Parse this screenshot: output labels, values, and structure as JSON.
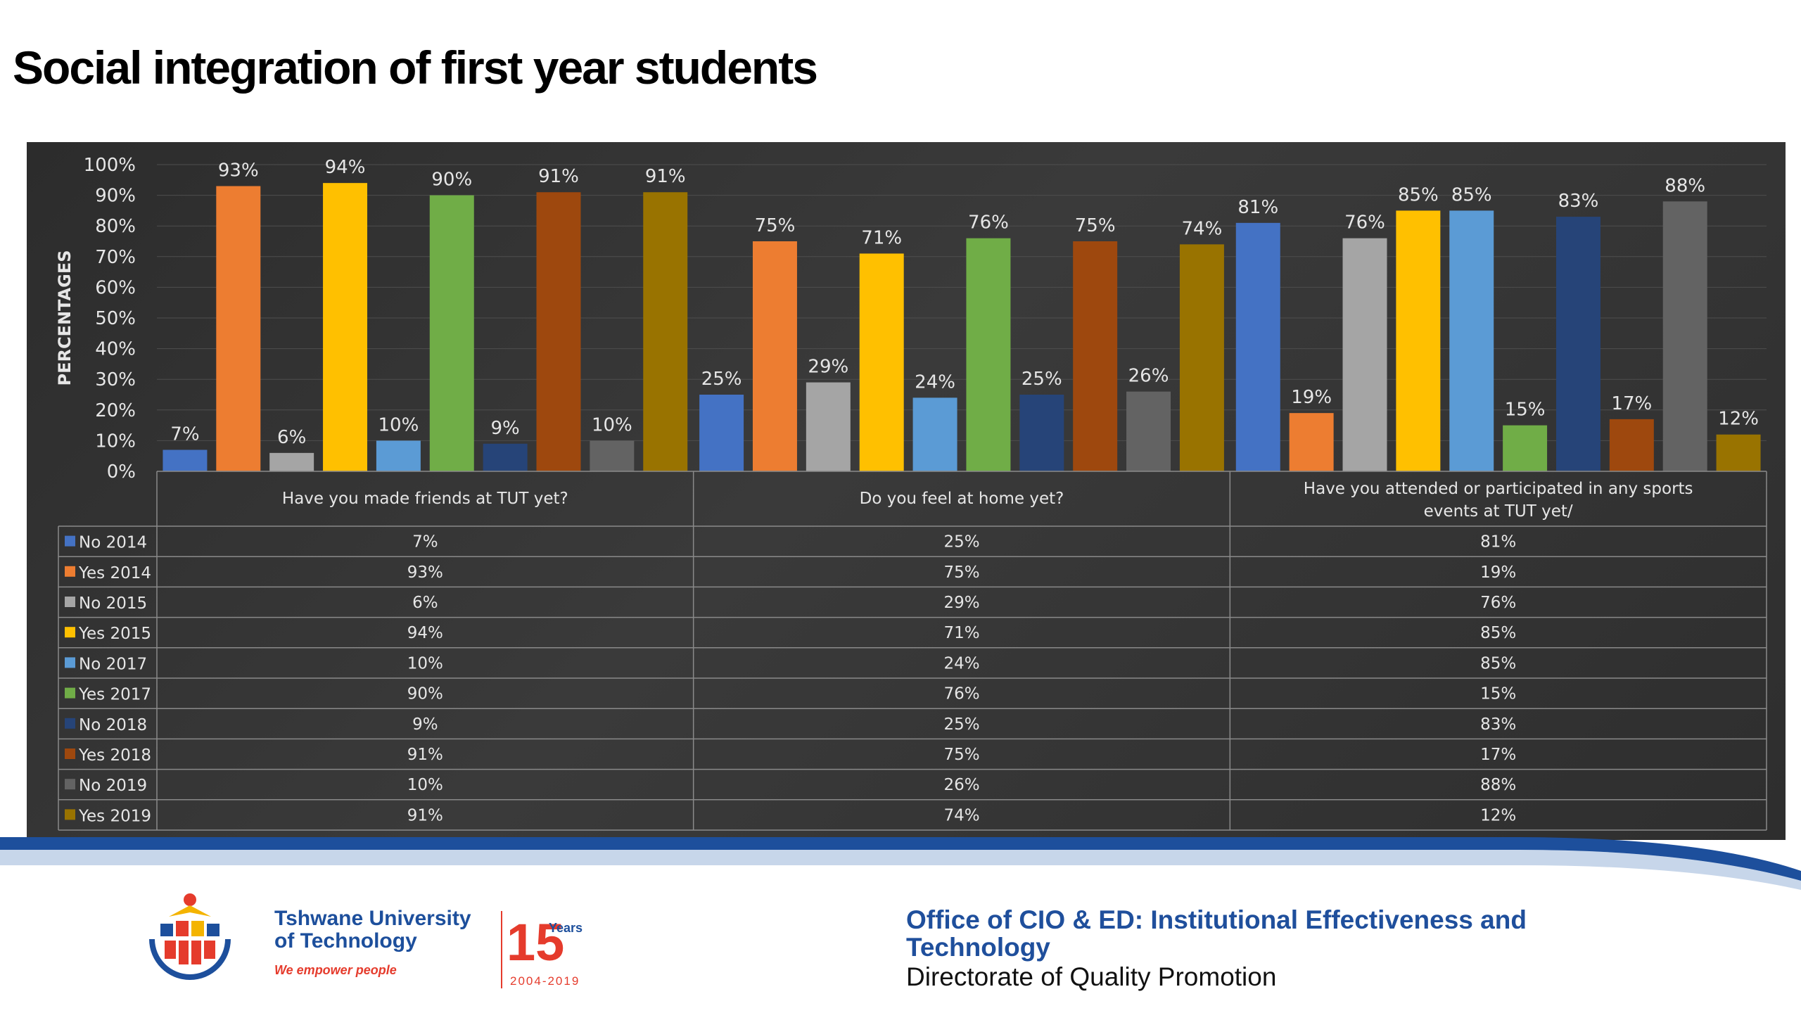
{
  "page": {
    "title": "Social integration of first year students"
  },
  "footer": {
    "university_line1": "Tshwane University",
    "university_line2": "of Technology",
    "slogan": "We empower people",
    "anniversary_number": "15",
    "anniversary_word": "Years",
    "anniversary_range": "2004-2019",
    "office": "Office of CIO & ED: Institutional  Effectiveness and Technology",
    "directorate": "Directorate of Quality Promotion",
    "colors": {
      "office_text": "#1f4f9c",
      "band_blue": "#1d4f9c",
      "band_light": "#c7d6ea"
    }
  },
  "chart_data": {
    "type": "bar",
    "ylabel": "PERCENTAGES",
    "xlabel": "",
    "ylim": [
      0,
      100
    ],
    "y_ticks": [
      "0%",
      "10%",
      "20%",
      "30%",
      "40%",
      "50%",
      "60%",
      "70%",
      "80%",
      "90%",
      "100%"
    ],
    "grid": true,
    "legend": "data-table",
    "categories": [
      "Have you made friends  at TUT yet?",
      "Do you feel at home yet?",
      "Have you attended or participated in any sports events at TUT yet/"
    ],
    "series": [
      {
        "name": "No 2014",
        "color": "#4472c4",
        "values": [
          7,
          25,
          81
        ],
        "labels": [
          "7%",
          "25%",
          "81%"
        ]
      },
      {
        "name": "Yes 2014",
        "color": "#ed7d31",
        "values": [
          93,
          75,
          19
        ],
        "labels": [
          "93%",
          "75%",
          "19%"
        ]
      },
      {
        "name": "No 2015",
        "color": "#a5a5a5",
        "values": [
          6,
          29,
          76
        ],
        "labels": [
          "6%",
          "29%",
          "76%"
        ]
      },
      {
        "name": "Yes 2015",
        "color": "#ffc000",
        "values": [
          94,
          71,
          85
        ],
        "labels": [
          "94%",
          "71%",
          "85%"
        ]
      },
      {
        "name": "No 2017",
        "color": "#5b9bd5",
        "values": [
          10,
          24,
          85
        ],
        "labels": [
          "10%",
          "24%",
          "85%"
        ]
      },
      {
        "name": "Yes 2017",
        "color": "#70ad47",
        "values": [
          90,
          76,
          15
        ],
        "labels": [
          "90%",
          "76%",
          "15%"
        ]
      },
      {
        "name": "No 2018",
        "color": "#264478",
        "values": [
          9,
          25,
          83
        ],
        "labels": [
          "9%",
          "25%",
          "83%"
        ]
      },
      {
        "name": "Yes 2018",
        "color": "#9e480e",
        "values": [
          91,
          75,
          17
        ],
        "labels": [
          "91%",
          "75%",
          "17%"
        ]
      },
      {
        "name": "No 2019",
        "color": "#636363",
        "values": [
          10,
          26,
          88
        ],
        "labels": [
          "10%",
          "26%",
          "88%"
        ]
      },
      {
        "name": "Yes 2019",
        "color": "#997300",
        "values": [
          91,
          74,
          12
        ],
        "labels": [
          "91%",
          "74%",
          "12%"
        ]
      }
    ]
  }
}
